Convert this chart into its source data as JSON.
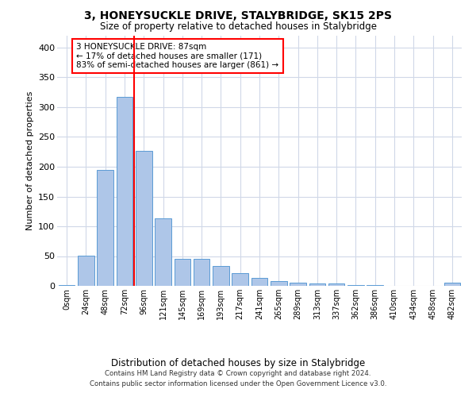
{
  "title": "3, HONEYSUCKLE DRIVE, STALYBRIDGE, SK15 2PS",
  "subtitle": "Size of property relative to detached houses in Stalybridge",
  "xlabel": "Distribution of detached houses by size in Stalybridge",
  "ylabel": "Number of detached properties",
  "footer_line1": "Contains HM Land Registry data © Crown copyright and database right 2024.",
  "footer_line2": "Contains public sector information licensed under the Open Government Licence v3.0.",
  "bar_color": "#aec6e8",
  "bar_edge_color": "#5b9bd5",
  "grid_color": "#d0d8e8",
  "categories": [
    "0sqm",
    "24sqm",
    "48sqm",
    "72sqm",
    "96sqm",
    "121sqm",
    "145sqm",
    "169sqm",
    "193sqm",
    "217sqm",
    "241sqm",
    "265sqm",
    "289sqm",
    "313sqm",
    "337sqm",
    "362sqm",
    "386sqm",
    "410sqm",
    "434sqm",
    "458sqm",
    "482sqm"
  ],
  "values": [
    2,
    51,
    195,
    317,
    227,
    114,
    46,
    45,
    34,
    22,
    13,
    8,
    6,
    4,
    4,
    2,
    1,
    0,
    0,
    0,
    5
  ],
  "property_label": "3 HONEYSUCKLE DRIVE: 87sqm",
  "pct_smaller": 17,
  "n_smaller": 171,
  "pct_larger_semi": 83,
  "n_larger_semi": 861,
  "ylim": [
    0,
    420
  ],
  "yticks": [
    0,
    50,
    100,
    150,
    200,
    250,
    300,
    350,
    400
  ]
}
